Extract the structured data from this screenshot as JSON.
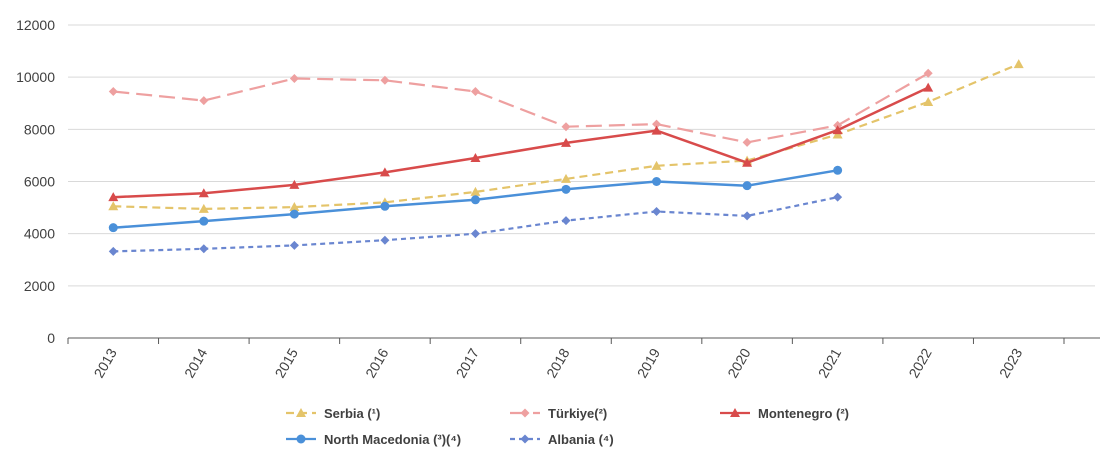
{
  "chart_data": {
    "type": "line",
    "title": "",
    "xlabel": "",
    "ylabel": "",
    "categories": [
      "2013",
      "2014",
      "2015",
      "2016",
      "2017",
      "2018",
      "2019",
      "2020",
      "2021",
      "2022",
      "2023"
    ],
    "ylim": [
      0,
      12000
    ],
    "yticks": [
      0,
      2000,
      4000,
      6000,
      8000,
      10000,
      12000
    ],
    "grid": "horizontal",
    "legend_position": "bottom",
    "series": [
      {
        "name": "Serbia (¹)",
        "color": "#e4c46a",
        "line_style": "dashed",
        "marker": "triangle",
        "values": [
          5050,
          4950,
          5020,
          5200,
          5600,
          6100,
          6600,
          6800,
          7800,
          9050,
          10500
        ]
      },
      {
        "name": "Türkiye(²)",
        "color": "#eea0a0",
        "line_style": "long-dashed",
        "marker": "diamond",
        "values": [
          9450,
          9100,
          9950,
          9880,
          9450,
          8100,
          8200,
          7500,
          8150,
          10150,
          null
        ]
      },
      {
        "name": "Montenegro (²)",
        "color": "#d84b4b",
        "line_style": "solid",
        "marker": "triangle",
        "values": [
          5400,
          5550,
          5870,
          6350,
          6900,
          7480,
          7950,
          6720,
          7970,
          9600,
          null
        ]
      },
      {
        "name": "North Macedonia (³)(⁴)",
        "color": "#4a90d9",
        "line_style": "solid",
        "marker": "circle",
        "values": [
          4230,
          4480,
          4750,
          5050,
          5300,
          5700,
          6000,
          5840,
          6430,
          null,
          null
        ]
      },
      {
        "name": "Albania (⁴)",
        "color": "#6a86d0",
        "line_style": "dotted",
        "marker": "diamond",
        "values": [
          3320,
          3420,
          3550,
          3750,
          4000,
          4500,
          4850,
          4680,
          5400,
          null,
          null
        ]
      }
    ]
  }
}
